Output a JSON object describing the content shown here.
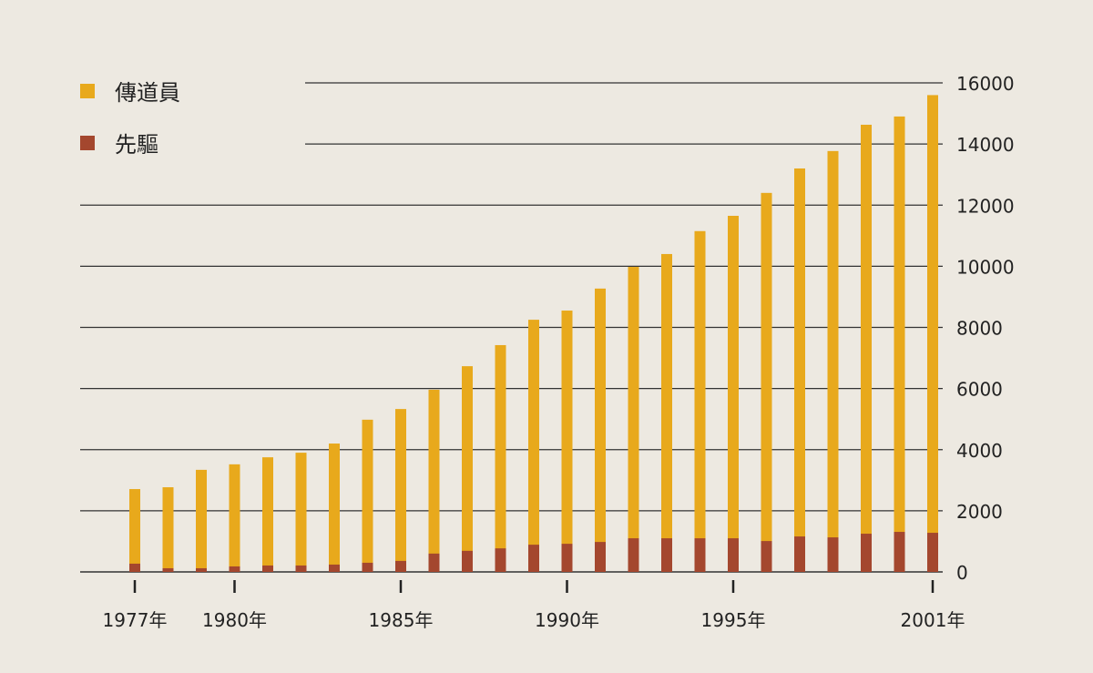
{
  "chart_data": {
    "type": "bar",
    "stacked": false,
    "categories": [
      "1977",
      "1978",
      "1979",
      "1980",
      "1981",
      "1982",
      "1983",
      "1984",
      "1985",
      "1986",
      "1987",
      "1988",
      "1989",
      "1990",
      "1991",
      "1992",
      "1993",
      "1994",
      "1995",
      "1996",
      "1997",
      "1998",
      "1999",
      "2000",
      "2001"
    ],
    "x_tick_labels": [
      {
        "category": "1977",
        "label": "1977年"
      },
      {
        "category": "1980",
        "label": "1980年"
      },
      {
        "category": "1985",
        "label": "1985年"
      },
      {
        "category": "1990",
        "label": "1990年"
      },
      {
        "category": "1995",
        "label": "1995年"
      },
      {
        "category": "2001",
        "label": "2001年"
      }
    ],
    "series": [
      {
        "name": "傳道員",
        "color": "#e8a91c",
        "values": [
          2710,
          2770,
          3340,
          3520,
          3750,
          3900,
          4200,
          4980,
          5330,
          5960,
          6730,
          7420,
          8250,
          8550,
          9270,
          9980,
          10400,
          11150,
          11650,
          12400,
          13200,
          13770,
          14630,
          14900,
          15600
        ]
      },
      {
        "name": "先驅",
        "color": "#a4472e",
        "values": [
          270,
          120,
          120,
          180,
          210,
          210,
          240,
          300,
          360,
          600,
          690,
          770,
          890,
          920,
          980,
          1100,
          1100,
          1100,
          1100,
          1010,
          1160,
          1130,
          1250,
          1310,
          1280
        ]
      }
    ],
    "ylim": [
      0,
      16000
    ],
    "y_ticks": [
      "0",
      "2000",
      "4000",
      "6000",
      "8000",
      "10000",
      "12000",
      "14000",
      "16000"
    ],
    "y_axis_side": "right",
    "grid": true,
    "legend_position": "top-left"
  }
}
